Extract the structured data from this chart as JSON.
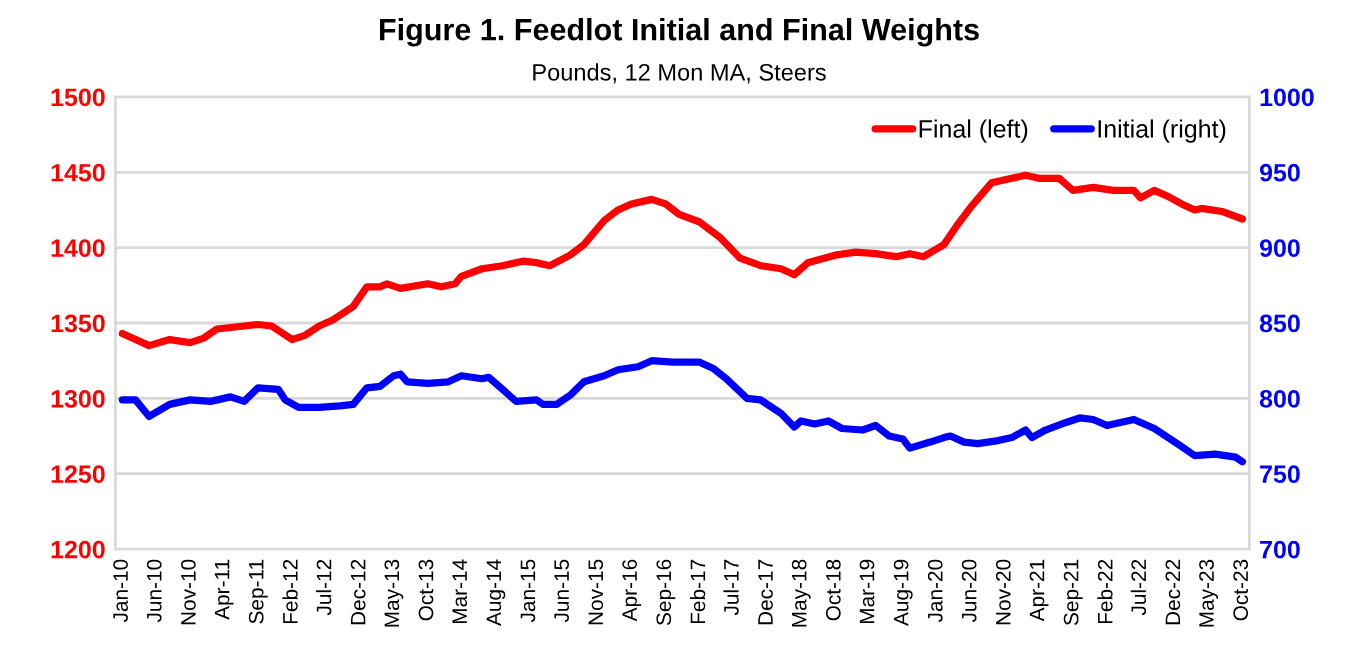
{
  "chart_data": {
    "type": "line",
    "title": "Figure 1. Feedlot Initial and Final Weights",
    "subtitle": "Pounds, 12 Mon MA, Steers",
    "series": [
      {
        "name": "Final (left)",
        "color": "#ff0000",
        "axis": "y",
        "x": [
          "2010-01",
          "2010-05",
          "2010-08",
          "2010-11",
          "2011-01",
          "2011-03",
          "2011-07",
          "2011-09",
          "2011-11",
          "2012-02",
          "2012-04",
          "2012-06",
          "2012-08",
          "2012-11",
          "2013-01",
          "2013-03",
          "2013-04",
          "2013-06",
          "2013-10",
          "2013-12",
          "2014-02",
          "2014-03",
          "2014-06",
          "2014-09",
          "2014-12",
          "2015-02",
          "2015-04",
          "2015-07",
          "2015-09",
          "2015-12",
          "2016-02",
          "2016-04",
          "2016-07",
          "2016-09",
          "2016-11",
          "2017-02",
          "2017-05",
          "2017-08",
          "2017-11",
          "2018-02",
          "2018-04",
          "2018-06",
          "2018-10",
          "2019-01",
          "2019-04",
          "2019-07",
          "2019-09",
          "2019-11",
          "2020-02",
          "2020-04",
          "2020-06",
          "2020-09",
          "2020-12",
          "2021-02",
          "2021-04",
          "2021-07",
          "2021-09",
          "2021-12",
          "2022-03",
          "2022-06",
          "2022-07",
          "2022-09",
          "2022-11",
          "2023-01",
          "2023-03",
          "2023-04",
          "2023-07",
          "2023-10"
        ],
        "values": [
          1343,
          1335,
          1339,
          1337,
          1340,
          1346,
          1348,
          1349,
          1348,
          1339,
          1342,
          1348,
          1352,
          1361,
          1374,
          1374,
          1376,
          1373,
          1376,
          1374,
          1376,
          1381,
          1386,
          1388,
          1391,
          1390,
          1388,
          1395,
          1402,
          1418,
          1425,
          1429,
          1432,
          1429,
          1422,
          1417,
          1407,
          1393,
          1388,
          1386,
          1382,
          1390,
          1395,
          1397,
          1396,
          1394,
          1396,
          1394,
          1402,
          1415,
          1427,
          1443,
          1446,
          1448,
          1446,
          1446,
          1438,
          1440,
          1438,
          1438,
          1433,
          1438,
          1434,
          1429,
          1425,
          1426,
          1424,
          1419
        ]
      },
      {
        "name": "Initial (right)",
        "color": "#0000ff",
        "axis": "y2",
        "x": [
          "2010-01",
          "2010-03",
          "2010-05",
          "2010-08",
          "2010-11",
          "2011-02",
          "2011-05",
          "2011-07",
          "2011-09",
          "2011-12",
          "2012-01",
          "2012-03",
          "2012-06",
          "2012-09",
          "2012-11",
          "2013-01",
          "2013-03",
          "2013-05",
          "2013-06",
          "2013-07",
          "2013-10",
          "2014-01",
          "2014-03",
          "2014-06",
          "2014-07",
          "2014-09",
          "2014-11",
          "2015-02",
          "2015-03",
          "2015-05",
          "2015-07",
          "2015-09",
          "2015-12",
          "2016-02",
          "2016-05",
          "2016-07",
          "2016-10",
          "2017-01",
          "2017-02",
          "2017-04",
          "2017-06",
          "2017-09",
          "2017-11",
          "2018-02",
          "2018-04",
          "2018-05",
          "2018-07",
          "2018-09",
          "2018-11",
          "2019-02",
          "2019-04",
          "2019-06",
          "2019-08",
          "2019-09",
          "2019-12",
          "2020-02",
          "2020-03",
          "2020-05",
          "2020-07",
          "2020-10",
          "2020-12",
          "2021-02",
          "2021-03",
          "2021-05",
          "2021-08",
          "2021-10",
          "2021-12",
          "2022-02",
          "2022-06",
          "2022-09",
          "2023-01",
          "2023-03",
          "2023-06",
          "2023-09",
          "2023-10"
        ],
        "values": [
          799,
          799,
          788,
          796,
          799,
          798,
          801,
          798,
          807,
          806,
          799,
          794,
          794,
          795,
          796,
          807,
          808,
          815,
          816,
          811,
          810,
          811,
          815,
          813,
          814,
          806,
          798,
          799,
          796,
          796,
          802,
          811,
          815,
          819,
          821,
          825,
          824,
          824,
          824,
          820,
          813,
          800,
          799,
          790,
          781,
          785,
          783,
          785,
          780,
          779,
          782,
          775,
          773,
          767,
          771,
          774,
          775,
          771,
          770,
          772,
          774,
          779,
          774,
          779,
          784,
          787,
          786,
          782,
          786,
          780,
          768,
          762,
          763,
          761,
          758
        ]
      }
    ],
    "xlim": [
      "2009-12",
      "2023-11"
    ],
    "xticks": [
      {
        "value": "2010-01",
        "label": "Jan-10"
      },
      {
        "value": "2010-06",
        "label": "Jun-10"
      },
      {
        "value": "2010-11",
        "label": "Nov-10"
      },
      {
        "value": "2011-04",
        "label": "Apr-11"
      },
      {
        "value": "2011-09",
        "label": "Sep-11"
      },
      {
        "value": "2012-02",
        "label": "Feb-12"
      },
      {
        "value": "2012-07",
        "label": "Jul-12"
      },
      {
        "value": "2012-12",
        "label": "Dec-12"
      },
      {
        "value": "2013-05",
        "label": "May-13"
      },
      {
        "value": "2013-10",
        "label": "Oct-13"
      },
      {
        "value": "2014-03",
        "label": "Mar-14"
      },
      {
        "value": "2014-08",
        "label": "Aug-14"
      },
      {
        "value": "2015-01",
        "label": "Jan-15"
      },
      {
        "value": "2015-06",
        "label": "Jun-15"
      },
      {
        "value": "2015-11",
        "label": "Nov-15"
      },
      {
        "value": "2016-04",
        "label": "Apr-16"
      },
      {
        "value": "2016-09",
        "label": "Sep-16"
      },
      {
        "value": "2017-02",
        "label": "Feb-17"
      },
      {
        "value": "2017-07",
        "label": "Jul-17"
      },
      {
        "value": "2017-12",
        "label": "Dec-17"
      },
      {
        "value": "2018-05",
        "label": "May-18"
      },
      {
        "value": "2018-10",
        "label": "Oct-18"
      },
      {
        "value": "2019-03",
        "label": "Mar-19"
      },
      {
        "value": "2019-08",
        "label": "Aug-19"
      },
      {
        "value": "2020-01",
        "label": "Jan-20"
      },
      {
        "value": "2020-06",
        "label": "Jun-20"
      },
      {
        "value": "2020-11",
        "label": "Nov-20"
      },
      {
        "value": "2021-04",
        "label": "Apr-21"
      },
      {
        "value": "2021-09",
        "label": "Sep-21"
      },
      {
        "value": "2022-02",
        "label": "Feb-22"
      },
      {
        "value": "2022-07",
        "label": "Jul-22"
      },
      {
        "value": "2022-12",
        "label": "Dec-22"
      },
      {
        "value": "2023-05",
        "label": "May-23"
      },
      {
        "value": "2023-10",
        "label": "Oct-23"
      }
    ],
    "ylim": [
      1200,
      1500
    ],
    "yticks": [
      1200,
      1250,
      1300,
      1350,
      1400,
      1450,
      1500
    ],
    "y2lim": [
      700,
      1000
    ],
    "y2ticks": [
      700,
      750,
      800,
      850,
      900,
      950,
      1000
    ],
    "grid": "y",
    "legend": "top right",
    "marker": "none",
    "line_style": "solid"
  }
}
